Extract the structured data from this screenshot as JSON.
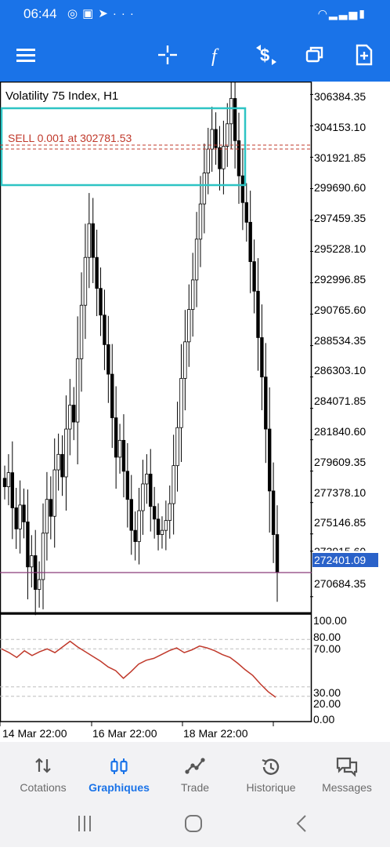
{
  "status_bar": {
    "time": "06:44",
    "left_icons": [
      "whatsapp-icon",
      "image-icon",
      "telegram-icon",
      "more-icon"
    ],
    "right_icons": [
      "wifi-icon",
      "signal-icon",
      "signal-icon",
      "battery-icon"
    ]
  },
  "toolbar": {
    "icons": [
      "menu-icon",
      "crosshair-icon",
      "indicators-icon",
      "trade-icon",
      "windows-icon",
      "new-order-icon"
    ]
  },
  "chart": {
    "symbol": "Volatility 75 Index, H1",
    "sell_label": "SELL 0.001 at 302781.53",
    "current_price": "272401.09",
    "price_labels": [
      "306384.35",
      "304153.10",
      "301921.85",
      "299690.60",
      "297459.35",
      "295228.10",
      "292996.85",
      "290765.60",
      "288534.35",
      "286303.10",
      "284071.85",
      "281840.60",
      "279609.35",
      "277378.10",
      "275146.85",
      "273915.60",
      "270684.35"
    ],
    "oscillator_labels": [
      "100.00",
      "80.00",
      "70.00",
      "30.00",
      "20.00",
      "0.00"
    ],
    "date_labels": [
      "14 Mar 22:00",
      "16 Mar 22:00",
      "18 Mar 22:00"
    ],
    "colors": {
      "sell_line": "#c0392b",
      "rectangle": "#2ec4c4",
      "bid_line": "#8a3a7a",
      "oscillator": "#c0392b",
      "accent": "#1a73e8"
    }
  },
  "chart_data": {
    "type": "line",
    "title": "Volatility 75 Index, H1",
    "xlabel": "",
    "ylabel": "",
    "x_ticks": [
      "14 Mar 22:00",
      "16 Mar 22:00",
      "18 Mar 22:00"
    ],
    "ylim": [
      269500,
      307300
    ],
    "series": [
      {
        "values": [
          278500,
          279500,
          277000,
          275500,
          277200,
          276000,
          272800,
          273600,
          271200,
          271900,
          275200,
          277600,
          276400,
          279700,
          280800,
          279200,
          282600,
          284300,
          283100,
          287600,
          291400,
          294800,
          297200,
          294800,
          292600,
          290700,
          288600,
          286500,
          283400,
          280600,
          281800,
          279600,
          277600,
          275400,
          274600,
          276800,
          278700,
          279400,
          277100,
          276200,
          275100,
          275400,
          276100,
          277300,
          280000,
          282700,
          286200,
          288800,
          291100,
          293200,
          296100,
          298600,
          300800,
          302500,
          303900,
          302600,
          301100,
          302700,
          304300,
          306100,
          303100,
          300600,
          298700,
          297300,
          294500,
          292400,
          289100,
          286300,
          282600,
          278200,
          275100,
          272400
        ]
      },
      {
        "name": "",
        "values": [
          70,
          66,
          61,
          68,
          63,
          67,
          70,
          66,
          72,
          78,
          72,
          67,
          62,
          57,
          51,
          47,
          39,
          46,
          54,
          58,
          60,
          64,
          68,
          71,
          66,
          69,
          73,
          71,
          68,
          64,
          61,
          55,
          48,
          42,
          33,
          25,
          19
        ]
      }
    ],
    "oscillator_range": [
      0,
      100
    ],
    "oscillator_levels": [
      80,
      70,
      30,
      20
    ],
    "sell_level": 302781.53,
    "bid_level": 272401.09
  },
  "bottom_nav": {
    "items": [
      {
        "label": "Cotations",
        "icon": "quotes-icon",
        "active": false
      },
      {
        "label": "Graphiques",
        "icon": "charts-icon",
        "active": true
      },
      {
        "label": "Trade",
        "icon": "trade-chart-icon",
        "active": false
      },
      {
        "label": "Historique",
        "icon": "history-icon",
        "active": false
      },
      {
        "label": "Messages",
        "icon": "messages-icon",
        "active": false
      }
    ]
  }
}
